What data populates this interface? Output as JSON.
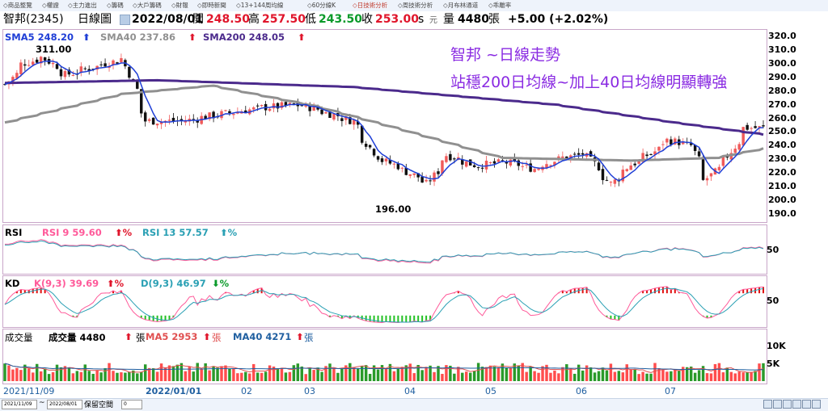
{
  "tabs": [
    {
      "label": "商品整覽",
      "active": false
    },
    {
      "label": "權證",
      "active": false
    },
    {
      "label": "主力進出",
      "active": false
    },
    {
      "label": "籌碼",
      "active": false
    },
    {
      "label": "大戶籌碼",
      "active": false
    },
    {
      "label": "財報",
      "active": false
    },
    {
      "label": "即時新聞",
      "active": false
    },
    {
      "label": "13+144周均線",
      "active": false
    },
    {
      "label": "60分線K",
      "active": false
    },
    {
      "label": "日技術分析",
      "active": true
    },
    {
      "label": "周技術分析",
      "active": false
    },
    {
      "label": "月布林通道",
      "active": false
    },
    {
      "label": "乖離率",
      "active": false
    }
  ],
  "header": {
    "stock": "智邦(2345)",
    "period": "日線圖",
    "date": "2022/08/01",
    "open_label": "開",
    "open": "248.50",
    "high_label": "高",
    "high": "257.50",
    "low_label": "低",
    "low": "243.50",
    "close_label": "收",
    "close": "253.00",
    "s": "s",
    "close_extra": "元",
    "volume_label": "量",
    "volume": "4480",
    "unit": "張",
    "change": "+5.00 (+2.02%)"
  },
  "main_panel": {
    "sma5": "SMA5 248.20",
    "sma40": "SMA40 237.86",
    "sma200": "SMA200 248.05",
    "annotation_line1": "智邦 ~日線走勢",
    "annotation_line2": "站穩200日均線~加上40日均線明顯轉強",
    "high_marker": "311.00",
    "low_marker": "196.00",
    "yticks": [
      "320.0",
      "310.0",
      "300.0",
      "290.0",
      "280.0",
      "270.0",
      "260.0",
      "250.0",
      "240.0",
      "230.0",
      "220.0",
      "210.0",
      "200.0",
      "190.0"
    ]
  },
  "rsi_panel": {
    "title": "RSI",
    "rsi9": "RSI 9 59.60",
    "rsi13": "RSI 13 57.57",
    "pct": "%",
    "ytick": "50"
  },
  "kd_panel": {
    "title": "KD",
    "k": "K(9,3) 39.69",
    "d": "D(9,3) 46.97",
    "pct": "%",
    "ytick": "50"
  },
  "vol_panel": {
    "title": "成交量",
    "vol": "成交量 4480",
    "ma5": "MA5 2953",
    "ma40": "MA40 4271",
    "unit": "張",
    "yticks": [
      "10K",
      "5K"
    ]
  },
  "xaxis": [
    "2021/11/09",
    "2022/01/01",
    "02",
    "03",
    "04",
    "05",
    "06",
    "07"
  ],
  "bottom": {
    "start": "2021/11/09",
    "end": "2022/08/01",
    "keep_label": "保留空間",
    "keep_value": "0"
  },
  "colors": {
    "up": "#f05a5a",
    "down": "#111111",
    "sma5": "#1f3fd6",
    "sma40": "#909090",
    "sma200": "#4b2a8c",
    "rsi9": "#ff5a9a",
    "rsi13": "#2aa0b4",
    "k": "#ff5a9a",
    "d": "#2aa0b4",
    "vol_up": "#ff4d4d",
    "vol_down": "#2a9a2a",
    "ma5v": "#e05050",
    "ma40v": "#1f5fa0",
    "annot": "#8a2be2"
  },
  "chart_data": {
    "type": "candlestick",
    "ylim": [
      185,
      325
    ],
    "anchors": [
      {
        "x": "2021/11/09",
        "close": 285
      },
      {
        "x": "2021/11/15",
        "close": 300
      },
      {
        "x": "2021/11/22",
        "close": 305
      },
      {
        "x": "2021/11/30",
        "close": 292
      },
      {
        "x": "2021/12/10",
        "close": 298
      },
      {
        "x": "2021/12/20",
        "close": 304
      },
      {
        "x": "2021/12/28",
        "close": 258
      },
      {
        "x": "2022/01/10",
        "close": 258
      },
      {
        "x": "2022/01/20",
        "close": 262
      },
      {
        "x": "2022/02/07",
        "close": 268
      },
      {
        "x": "2022/02/20",
        "close": 270
      },
      {
        "x": "2022/03/01",
        "close": 264
      },
      {
        "x": "2022/03/10",
        "close": 258
      },
      {
        "x": "2022/03/18",
        "close": 232
      },
      {
        "x": "2022/03/28",
        "close": 222
      },
      {
        "x": "2022/04/05",
        "close": 212
      },
      {
        "x": "2022/04/12",
        "close": 233
      },
      {
        "x": "2022/04/22",
        "close": 225
      },
      {
        "x": "2022/05/02",
        "close": 228
      },
      {
        "x": "2022/05/12",
        "close": 223
      },
      {
        "x": "2022/05/20",
        "close": 230
      },
      {
        "x": "2022/05/30",
        "close": 234
      },
      {
        "x": "2022/06/08",
        "close": 212
      },
      {
        "x": "2022/06/15",
        "close": 226
      },
      {
        "x": "2022/06/22",
        "close": 234
      },
      {
        "x": "2022/06/28",
        "close": 244
      },
      {
        "x": "2022/07/06",
        "close": 240
      },
      {
        "x": "2022/07/11",
        "close": 214
      },
      {
        "x": "2022/07/18",
        "close": 229
      },
      {
        "x": "2022/07/25",
        "close": 253
      },
      {
        "x": "2022/08/01",
        "close": 253
      }
    ],
    "sma200_anchors": [
      {
        "x": "2021/11/09",
        "v": 286
      },
      {
        "x": "2022/01/01",
        "v": 288
      },
      {
        "x": "2022/03/10",
        "v": 283
      },
      {
        "x": "2022/05/20",
        "v": 270
      },
      {
        "x": "2022/06/30",
        "v": 257
      },
      {
        "x": "2022/08/01",
        "v": 248
      }
    ],
    "sma40_anchors": [
      {
        "x": "2021/11/09",
        "v": 257
      },
      {
        "x": "2021/12/20",
        "v": 278
      },
      {
        "x": "2022/01/20",
        "v": 284
      },
      {
        "x": "2022/02/25",
        "v": 269
      },
      {
        "x": "2022/03/25",
        "v": 253
      },
      {
        "x": "2022/05/01",
        "v": 231
      },
      {
        "x": "2022/06/15",
        "v": 229
      },
      {
        "x": "2022/07/15",
        "v": 231
      },
      {
        "x": "2022/08/01",
        "v": 238
      }
    ],
    "rsi9": 59.6,
    "rsi13": 57.57,
    "k": 39.69,
    "d": 46.97,
    "volume": 4480,
    "ma5_volume": 2953,
    "ma40_volume": 4271
  }
}
